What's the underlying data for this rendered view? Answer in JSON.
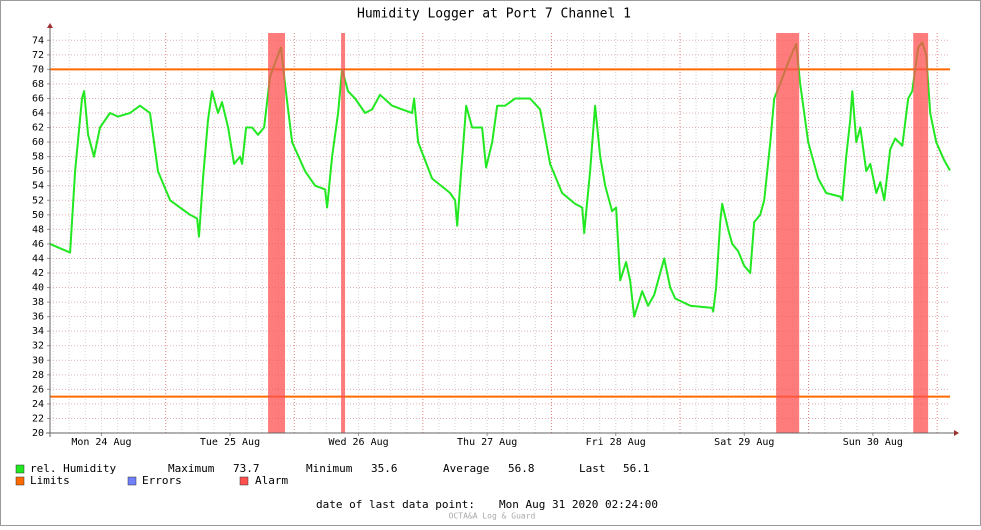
{
  "chart_data": {
    "type": "line",
    "title": "Humidity Logger at Port 7 Channel 1",
    "x": [
      24.1,
      24.256,
      24.295,
      24.349,
      24.365,
      24.396,
      24.442,
      24.489,
      24.567,
      24.629,
      24.722,
      24.8,
      24.878,
      24.94,
      25.034,
      25.189,
      25.244,
      25.259,
      25.29,
      25.329,
      25.36,
      25.407,
      25.438,
      25.485,
      25.532,
      25.578,
      25.594,
      25.625,
      25.672,
      25.718,
      25.765,
      25.812,
      25.874,
      25.897,
      25.928,
      25.983,
      26.084,
      26.162,
      26.24,
      26.255,
      26.294,
      26.341,
      26.372,
      26.418,
      26.473,
      26.551,
      26.605,
      26.667,
      26.761,
      26.839,
      26.916,
      26.932,
      26.963,
      27.072,
      27.212,
      27.251,
      27.267,
      27.29,
      27.337,
      27.383,
      27.461,
      27.492,
      27.539,
      27.578,
      27.64,
      27.718,
      27.834,
      27.912,
      27.99,
      28.083,
      28.185,
      28.239,
      28.255,
      28.301,
      28.34,
      28.379,
      28.418,
      28.472,
      28.503,
      28.535,
      28.581,
      28.612,
      28.644,
      28.706,
      28.752,
      28.799,
      28.877,
      28.924,
      28.963,
      29.079,
      29.25,
      29.258,
      29.281,
      29.313,
      29.328,
      29.375,
      29.406,
      29.453,
      29.499,
      29.546,
      29.577,
      29.624,
      29.655,
      29.702,
      29.733,
      29.779,
      29.842,
      29.904,
      29.935,
      29.997,
      30.075,
      30.137,
      30.246,
      30.262,
      30.293,
      30.324,
      30.34,
      30.371,
      30.402,
      30.449,
      30.48,
      30.527,
      30.558,
      30.589,
      30.635,
      30.674,
      30.729,
      30.775,
      30.806,
      30.853,
      30.884,
      30.915,
      30.946,
      30.993,
      31.055,
      31.1
    ],
    "series": [
      {
        "name": "rel. Humidity",
        "color": "#22e822",
        "values": [
          46,
          44.8,
          56,
          66,
          67,
          61,
          58,
          62,
          64,
          63.5,
          64,
          65,
          64,
          56,
          52,
          50,
          49.5,
          47,
          55,
          63,
          67,
          64,
          65.5,
          62,
          57,
          58,
          57,
          62,
          62,
          61,
          62,
          69,
          72,
          73,
          68,
          60,
          56,
          54,
          53.5,
          51,
          58,
          64,
          70,
          67,
          66,
          64,
          64.5,
          66.5,
          65,
          64.5,
          64,
          66,
          60,
          55,
          53,
          52,
          48.5,
          54,
          65,
          62,
          62,
          56.5,
          60,
          65,
          65,
          66,
          66,
          64.5,
          57,
          53,
          51.5,
          51,
          47.5,
          56,
          65,
          58,
          54,
          50.5,
          51,
          41,
          43.5,
          41,
          36,
          39.5,
          37.5,
          39,
          44,
          40,
          38.5,
          37.5,
          37.2,
          36.7,
          40,
          49,
          51.5,
          48,
          46,
          45,
          43,
          42,
          49,
          50,
          52,
          60,
          66,
          68,
          71,
          73.5,
          68,
          60,
          55,
          53,
          52.5,
          52,
          58,
          63,
          67,
          60,
          62,
          56,
          57,
          53,
          54.5,
          52,
          59,
          60.5,
          59.5,
          66,
          67,
          73,
          73.7,
          72,
          64,
          60,
          57.5,
          56.1
        ]
      }
    ],
    "xlim": [
      24.1,
      31.1
    ],
    "ylim": [
      20,
      75
    ],
    "yticks": [
      20,
      22,
      24,
      26,
      28,
      30,
      32,
      34,
      36,
      38,
      40,
      42,
      44,
      46,
      48,
      50,
      52,
      54,
      56,
      58,
      60,
      62,
      64,
      66,
      68,
      70,
      72,
      74
    ],
    "xticks": [
      {
        "value": 24.5,
        "label": "Mon 24 Aug"
      },
      {
        "value": 25.5,
        "label": "Tue 25 Aug"
      },
      {
        "value": 26.5,
        "label": "Wed 26 Aug"
      },
      {
        "value": 27.5,
        "label": "Thu 27 Aug"
      },
      {
        "value": 28.5,
        "label": "Fri 28 Aug"
      },
      {
        "value": 29.5,
        "label": "Sat 29 Aug"
      },
      {
        "value": 30.5,
        "label": "Sun 30 Aug"
      }
    ],
    "xgrid": [
      25,
      26,
      27,
      28,
      29,
      30,
      31
    ],
    "grid": true,
    "limits": {
      "name": "Limits",
      "color": "#ff6a00",
      "values": [
        25,
        70
      ]
    },
    "errors": {
      "name": "Errors",
      "color": "#7080ff"
    },
    "alarms": {
      "name": "Alarm",
      "color": "#ff5050",
      "ranges": [
        [
          25.796,
          25.928
        ],
        [
          26.364,
          26.395
        ],
        [
          29.748,
          29.927
        ],
        [
          30.814,
          30.93
        ]
      ]
    },
    "stats": [
      {
        "label": "Maximum",
        "value": 73.7
      },
      {
        "label": "Minimum",
        "value": 35.6
      },
      {
        "label": "Average",
        "value": 56.8
      },
      {
        "label": "Last",
        "value": 56.1
      }
    ],
    "footer": {
      "label": "date of last data point:",
      "value": "Mon Aug 31 2020 02:24:00"
    },
    "watermark": "OCTA&A Log & Guard"
  }
}
